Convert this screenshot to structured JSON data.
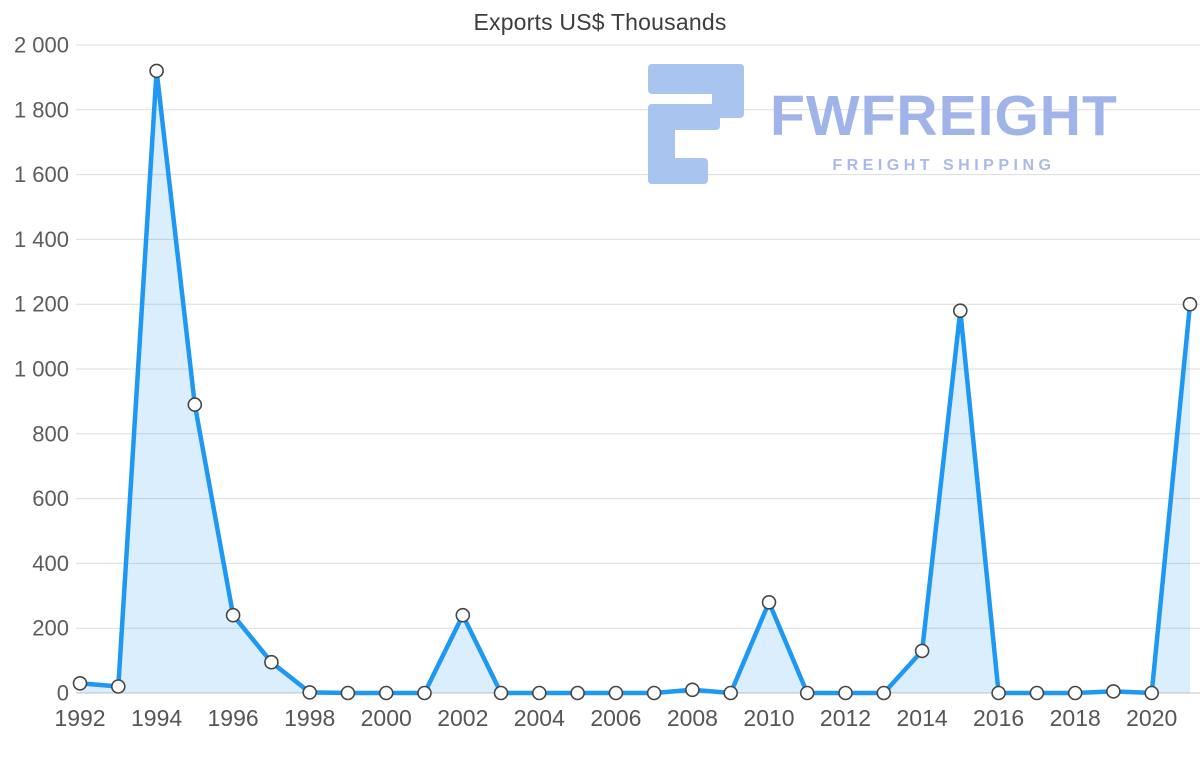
{
  "title": "Exports US$ Thousands",
  "watermark": {
    "brand": "FWFREIGHT",
    "tagline": "FREIGHT SHIPPING"
  },
  "colors": {
    "line": "#1e98f2",
    "area_fill": "rgba(30, 152, 242, 0.16)",
    "marker_fill": "#ffffff",
    "marker_stroke": "#454545",
    "gridline": "#dddddd",
    "axis_line": "#c6c6c6",
    "axis_text": "#5c5c5c",
    "title_text": "#3d3d3d",
    "watermark_text": "#9cb0e9",
    "watermark_icon": "#a6c1f0"
  },
  "chart_data": {
    "type": "area",
    "title": "Exports US$ Thousands",
    "xlabel": "",
    "ylabel": "",
    "x": [
      1992,
      1993,
      1994,
      1995,
      1996,
      1997,
      1998,
      1999,
      2000,
      2001,
      2002,
      2003,
      2004,
      2005,
      2006,
      2007,
      2008,
      2009,
      2010,
      2011,
      2012,
      2013,
      2014,
      2015,
      2016,
      2017,
      2018,
      2019,
      2020,
      2021
    ],
    "values": [
      30,
      20,
      1920,
      890,
      240,
      95,
      2,
      0,
      0,
      0,
      240,
      0,
      0,
      0,
      0,
      0,
      10,
      0,
      280,
      0,
      0,
      0,
      130,
      1180,
      0,
      0,
      0,
      5,
      0,
      1200
    ],
    "ylim": [
      0,
      2000
    ],
    "yticks": [
      0,
      200,
      400,
      600,
      800,
      1000,
      1200,
      1400,
      1600,
      1800,
      2000
    ],
    "ytick_labels": [
      "0",
      "200",
      "400",
      "600",
      "800",
      "1 000",
      "1 200",
      "1 400",
      "1 600",
      "1 800",
      "2 000"
    ],
    "xticks": [
      1992,
      1994,
      1996,
      1998,
      2000,
      2002,
      2004,
      2006,
      2008,
      2010,
      2012,
      2014,
      2016,
      2018,
      2020
    ],
    "grid": "horizontal",
    "legend": "none",
    "marker": "circle"
  }
}
